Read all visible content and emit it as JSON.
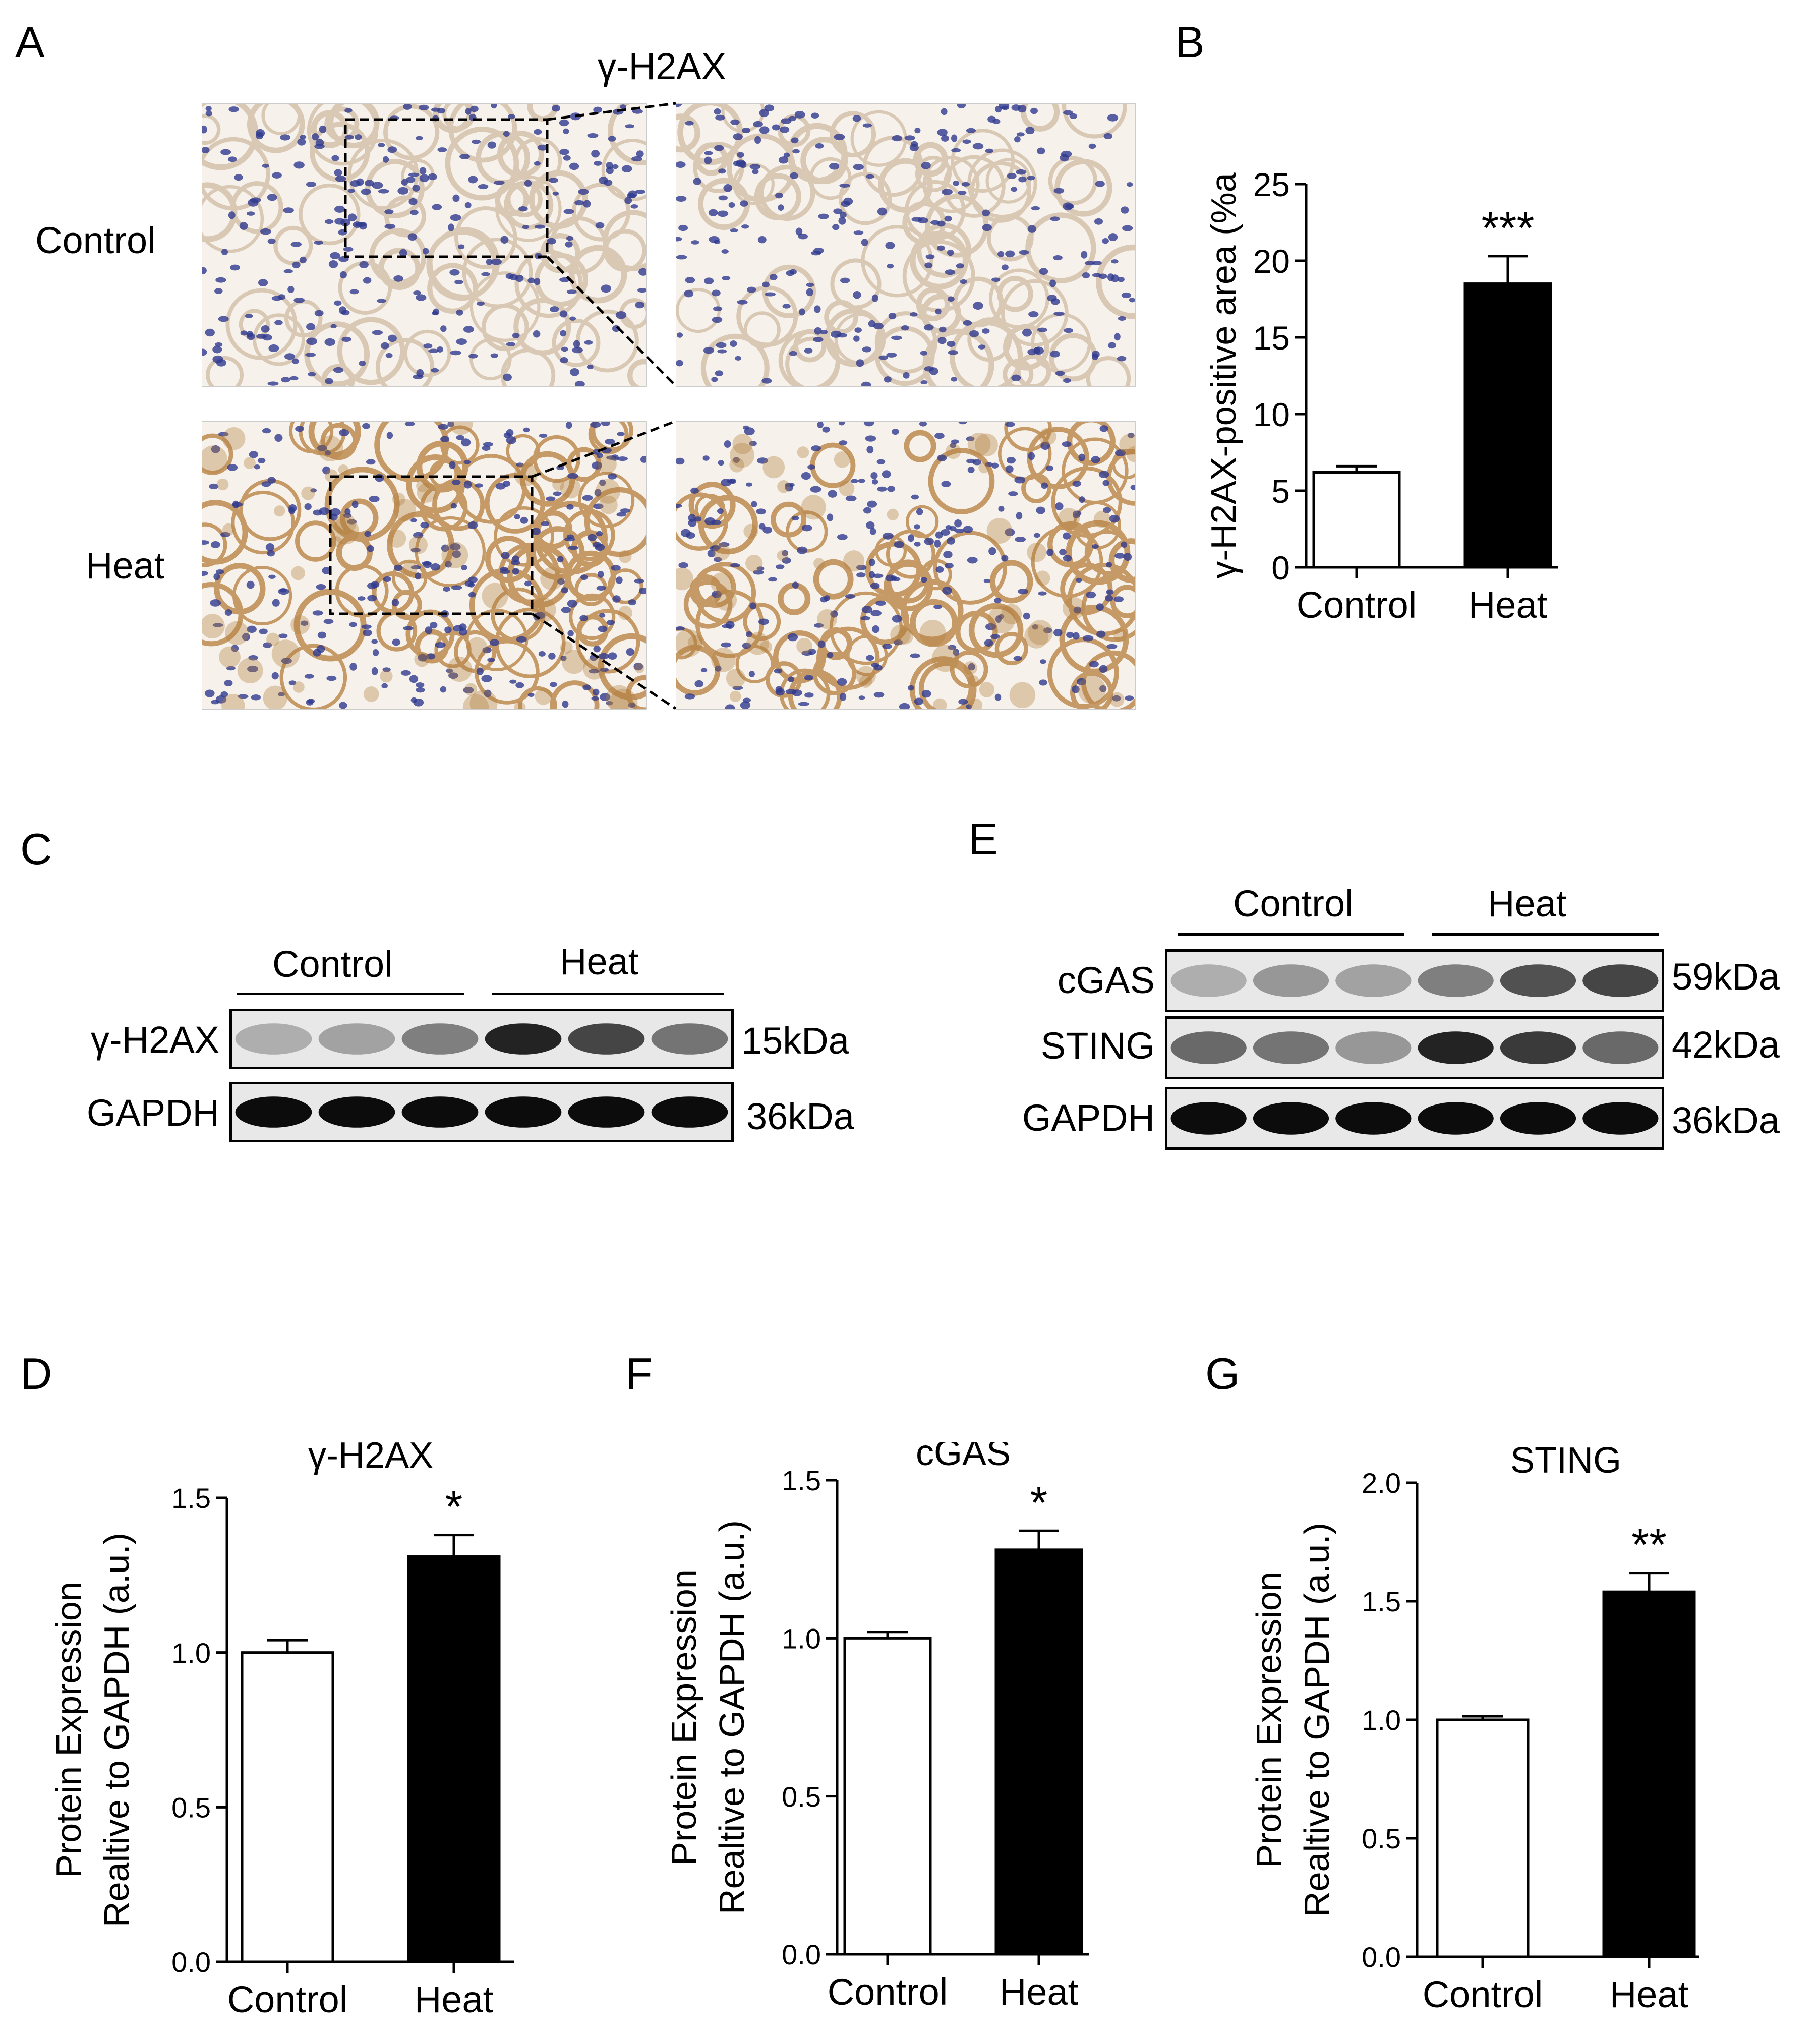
{
  "panels": {
    "A": "A",
    "B": "B",
    "C": "C",
    "D": "D",
    "E": "E",
    "F": "F",
    "G": "G"
  },
  "panel_a": {
    "title": "γ-H2AX",
    "row_labels": [
      "Control",
      "Heat"
    ]
  },
  "panel_c": {
    "group_labels": [
      "Control",
      "Heat"
    ],
    "bands": [
      {
        "name": "γ-H2AX",
        "size": "15kDa",
        "intensity": [
          0.25,
          0.3,
          0.45,
          0.85,
          0.7,
          0.5
        ]
      },
      {
        "name": "GAPDH",
        "size": "36kDa",
        "intensity": [
          0.95,
          0.95,
          0.95,
          0.95,
          0.95,
          0.95
        ]
      }
    ]
  },
  "panel_e": {
    "group_labels": [
      "Control",
      "Heat"
    ],
    "bands": [
      {
        "name": "cGAS",
        "size": "59kDa",
        "intensity": [
          0.25,
          0.35,
          0.3,
          0.45,
          0.65,
          0.7
        ]
      },
      {
        "name": "STING",
        "size": "42kDa",
        "intensity": [
          0.55,
          0.5,
          0.35,
          0.85,
          0.75,
          0.55
        ]
      },
      {
        "name": "GAPDH",
        "size": "36kDa",
        "intensity": [
          0.95,
          0.95,
          0.95,
          0.95,
          0.95,
          0.95
        ]
      }
    ]
  },
  "colors": {
    "control_bar": "#ffffff",
    "heat_bar": "#000000",
    "tissue_nuclei": "#2f3a8f",
    "tissue_stain": "#b07a3a"
  },
  "chart_data": [
    {
      "panel": "B",
      "type": "bar",
      "categories": [
        "Control",
        "Heat"
      ],
      "values": [
        6.2,
        18.5
      ],
      "errors": [
        0.4,
        1.8
      ],
      "significance": [
        "",
        "***"
      ],
      "ylabel": "γ-H2AX-positive area (%a",
      "ylim": [
        0,
        25
      ],
      "yticks": [
        "0",
        "5",
        "10",
        "15",
        "20",
        "25"
      ],
      "title": ""
    },
    {
      "panel": "D",
      "type": "bar",
      "categories": [
        "Control",
        "Heat"
      ],
      "values": [
        1.0,
        1.31
      ],
      "errors": [
        0.04,
        0.07
      ],
      "significance": [
        "",
        "*"
      ],
      "title": "γ-H2AX",
      "ylabel": [
        "Protein Expression",
        "Realtive to GAPDH (a.u.)"
      ],
      "ylim": [
        0,
        1.5
      ],
      "yticks": [
        "0.0",
        "0.5",
        "1.0",
        "1.5"
      ]
    },
    {
      "panel": "F",
      "type": "bar",
      "categories": [
        "Control",
        "Heat"
      ],
      "values": [
        1.0,
        1.28
      ],
      "errors": [
        0.02,
        0.06
      ],
      "significance": [
        "",
        "*"
      ],
      "title": "cGAS",
      "ylabel": [
        "Protein Expression",
        "Realtive to GAPDH (a.u.)"
      ],
      "ylim": [
        0,
        1.5
      ],
      "yticks": [
        "0.0",
        "0.5",
        "1.0",
        "1.5"
      ]
    },
    {
      "panel": "G",
      "type": "bar",
      "categories": [
        "Control",
        "Heat"
      ],
      "values": [
        1.0,
        1.54
      ],
      "errors": [
        0.015,
        0.08
      ],
      "significance": [
        "",
        "**"
      ],
      "title": "STING",
      "ylabel": [
        "Protein Expression",
        "Realtive to GAPDH (a.u.)"
      ],
      "ylim": [
        0,
        2.0
      ],
      "yticks": [
        "0.0",
        "0.5",
        "1.0",
        "1.5",
        "2.0"
      ]
    }
  ]
}
